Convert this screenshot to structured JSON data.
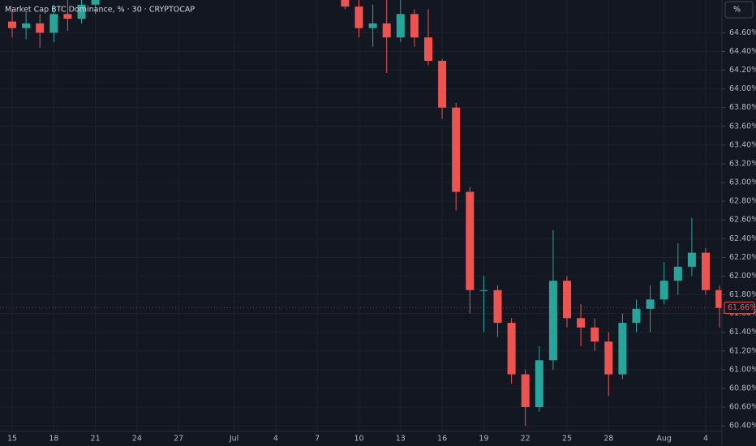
{
  "chart_data": {
    "type": "candlestick",
    "title": "Market Cap BTC Dominance, % · 30 · CRYPTOCAP",
    "scale_button": "%",
    "categories": [
      "15",
      null,
      null,
      "18",
      null,
      null,
      "21",
      null,
      null,
      "24",
      null,
      null,
      "27",
      null,
      null,
      null,
      "Jul",
      null,
      null,
      "4",
      null,
      null,
      "7",
      null,
      null,
      "10",
      null,
      null,
      "13",
      null,
      null,
      "16",
      null,
      null,
      "19",
      null,
      null,
      "22",
      null,
      null,
      "25",
      null,
      null,
      "28",
      null,
      null,
      null,
      "Aug",
      null,
      null,
      "4",
      null
    ],
    "open": [
      64.72,
      64.65,
      64.7,
      64.6,
      64.8,
      64.75,
      64.9,
      null,
      null,
      null,
      null,
      null,
      null,
      null,
      null,
      null,
      null,
      null,
      null,
      null,
      null,
      null,
      null,
      null,
      64.95,
      64.88,
      64.65,
      64.7,
      64.55,
      64.8,
      64.55,
      64.3,
      63.8,
      62.9,
      61.85,
      61.85,
      61.5,
      60.95,
      60.6,
      61.1,
      61.95,
      61.55,
      61.45,
      61.3,
      60.95,
      61.5,
      61.65,
      61.75,
      61.95,
      62.1,
      62.25,
      61.85
    ],
    "high": [
      64.85,
      64.82,
      64.8,
      64.9,
      64.95,
      64.95,
      64.95,
      null,
      null,
      null,
      null,
      null,
      null,
      null,
      null,
      null,
      null,
      null,
      null,
      null,
      null,
      null,
      null,
      null,
      64.95,
      64.95,
      64.9,
      64.95,
      64.95,
      64.85,
      64.85,
      64.32,
      63.85,
      62.95,
      62.0,
      61.9,
      61.55,
      61.0,
      61.25,
      62.49,
      62.0,
      61.7,
      61.55,
      61.4,
      61.6,
      61.75,
      61.9,
      62.15,
      62.35,
      62.62,
      62.3,
      61.9
    ],
    "low": [
      64.55,
      64.53,
      64.44,
      64.5,
      64.62,
      64.7,
      64.8,
      null,
      null,
      null,
      null,
      null,
      null,
      null,
      null,
      null,
      null,
      null,
      null,
      null,
      null,
      null,
      null,
      null,
      64.85,
      64.55,
      64.45,
      64.17,
      64.5,
      64.45,
      64.25,
      63.68,
      62.7,
      61.6,
      61.4,
      61.35,
      60.85,
      60.4,
      60.55,
      61.0,
      61.45,
      61.25,
      61.2,
      60.72,
      60.9,
      61.4,
      61.4,
      61.7,
      61.8,
      62.0,
      61.8,
      61.45
    ],
    "close": [
      64.65,
      64.7,
      64.6,
      64.8,
      64.75,
      64.9,
      64.95,
      null,
      null,
      null,
      null,
      null,
      null,
      null,
      null,
      null,
      null,
      null,
      null,
      null,
      null,
      null,
      null,
      null,
      64.88,
      64.65,
      64.7,
      64.55,
      64.8,
      64.55,
      64.3,
      63.8,
      62.9,
      61.85,
      61.85,
      61.5,
      60.95,
      60.6,
      61.1,
      61.95,
      61.55,
      61.45,
      61.3,
      60.95,
      61.5,
      61.65,
      61.75,
      61.95,
      62.1,
      62.25,
      61.85,
      61.66
    ],
    "up_color": "#26a69a",
    "down_color": "#ef5350",
    "last_price": 61.66,
    "last_price_label": "61.66%",
    "ylim": [
      60.34,
      64.95
    ],
    "yticks": [
      {
        "value": 60.4,
        "label": "60.40%"
      },
      {
        "value": 60.6,
        "label": "60.60%"
      },
      {
        "value": 60.8,
        "label": "60.80%"
      },
      {
        "value": 61.0,
        "label": "61.00%"
      },
      {
        "value": 61.2,
        "label": "61.20%"
      },
      {
        "value": 61.4,
        "label": "61.40%"
      },
      {
        "value": 61.6,
        "label": "61.60%"
      },
      {
        "value": 61.8,
        "label": "61.80%"
      },
      {
        "value": 62.0,
        "label": "62.00%"
      },
      {
        "value": 62.2,
        "label": "62.20%"
      },
      {
        "value": 62.4,
        "label": "62.40%"
      },
      {
        "value": 62.6,
        "label": "62.60%"
      },
      {
        "value": 62.8,
        "label": "62.80%"
      },
      {
        "value": 63.0,
        "label": "63.00%"
      },
      {
        "value": 63.2,
        "label": "63.20%"
      },
      {
        "value": 63.4,
        "label": "63.40%"
      },
      {
        "value": 63.6,
        "label": "63.60%"
      },
      {
        "value": 63.8,
        "label": "63.80%"
      },
      {
        "value": 64.0,
        "label": "64.00%"
      },
      {
        "value": 64.2,
        "label": "64.20%"
      },
      {
        "value": 64.4,
        "label": "64.40%"
      },
      {
        "value": 64.6,
        "label": "64.60%"
      }
    ],
    "grid": true
  }
}
